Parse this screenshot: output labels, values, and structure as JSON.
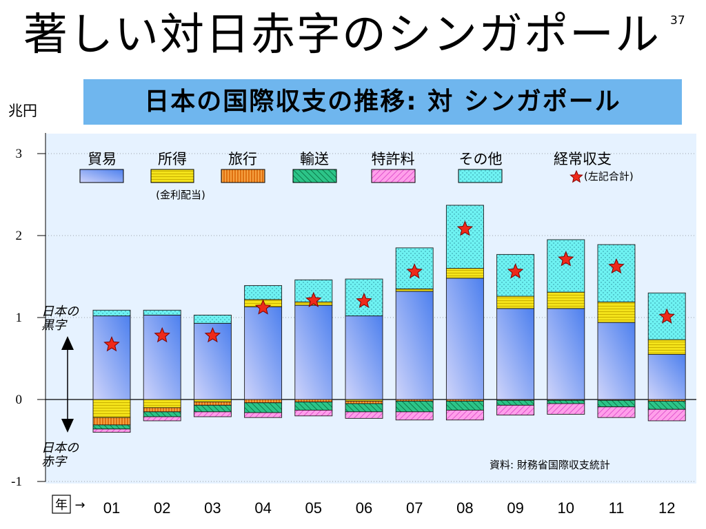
{
  "slide": {
    "title": "著しい対日赤字のシンガポール",
    "page_number": "37"
  },
  "chart_title": "日本の国際収支の推移: 対 シンガポール",
  "unit": "兆円",
  "legend_note": "(金利配当)",
  "total_note": "(左記合計)",
  "surplus_label": [
    "日本の",
    "黒字"
  ],
  "deficit_label": [
    "日本の",
    "赤字"
  ],
  "source": "資料: 財務省国際収支統計",
  "year_label_box": "年",
  "year_arrow": "→",
  "colors": {
    "trade": "#6f8ff0",
    "income": "#f4e31a",
    "travel": "#f08a1c",
    "transport": "#22b878",
    "royalties": "#ff7fe0",
    "other": "#66f0f0",
    "total_star": "#ee2a1a",
    "plot_bg": "#e6f2ff"
  },
  "chart_data": {
    "type": "bar",
    "stacked": true,
    "categories": [
      "01",
      "02",
      "03",
      "04",
      "05",
      "06",
      "07",
      "08",
      "09",
      "10",
      "11",
      "12"
    ],
    "ylim": [
      -1,
      3
    ],
    "yticks": [
      -1,
      0,
      1,
      2,
      3
    ],
    "series": [
      {
        "name": "貿易",
        "key": "trade",
        "values": [
          1.02,
          1.03,
          0.93,
          1.13,
          1.15,
          1.02,
          1.32,
          1.48,
          1.11,
          1.11,
          0.94,
          0.55
        ]
      },
      {
        "name": "所得",
        "key": "income",
        "values": [
          -0.22,
          -0.1,
          -0.03,
          0.09,
          0.04,
          -0.02,
          0.03,
          0.12,
          0.15,
          0.2,
          0.25,
          0.18
        ]
      },
      {
        "name": "旅行",
        "key": "travel",
        "values": [
          -0.09,
          -0.05,
          -0.04,
          -0.04,
          -0.03,
          -0.03,
          -0.02,
          -0.02,
          -0.01,
          -0.01,
          -0.01,
          -0.02
        ]
      },
      {
        "name": "輸送",
        "key": "transport",
        "values": [
          -0.05,
          -0.06,
          -0.08,
          -0.12,
          -0.1,
          -0.1,
          -0.13,
          -0.11,
          -0.06,
          -0.04,
          -0.08,
          -0.1
        ]
      },
      {
        "name": "特許料",
        "key": "royalties",
        "values": [
          -0.04,
          -0.05,
          -0.06,
          -0.06,
          -0.07,
          -0.08,
          -0.1,
          -0.12,
          -0.12,
          -0.13,
          -0.13,
          -0.14
        ]
      },
      {
        "name": "その他",
        "key": "other",
        "values": [
          0.07,
          0.06,
          0.1,
          0.17,
          0.27,
          0.45,
          0.5,
          0.77,
          0.51,
          0.64,
          0.7,
          0.57
        ]
      }
    ],
    "total": {
      "name": "経常収支",
      "values": [
        0.67,
        0.78,
        0.78,
        1.12,
        1.21,
        1.2,
        1.56,
        2.08,
        1.56,
        1.71,
        1.62,
        1.01
      ]
    }
  }
}
